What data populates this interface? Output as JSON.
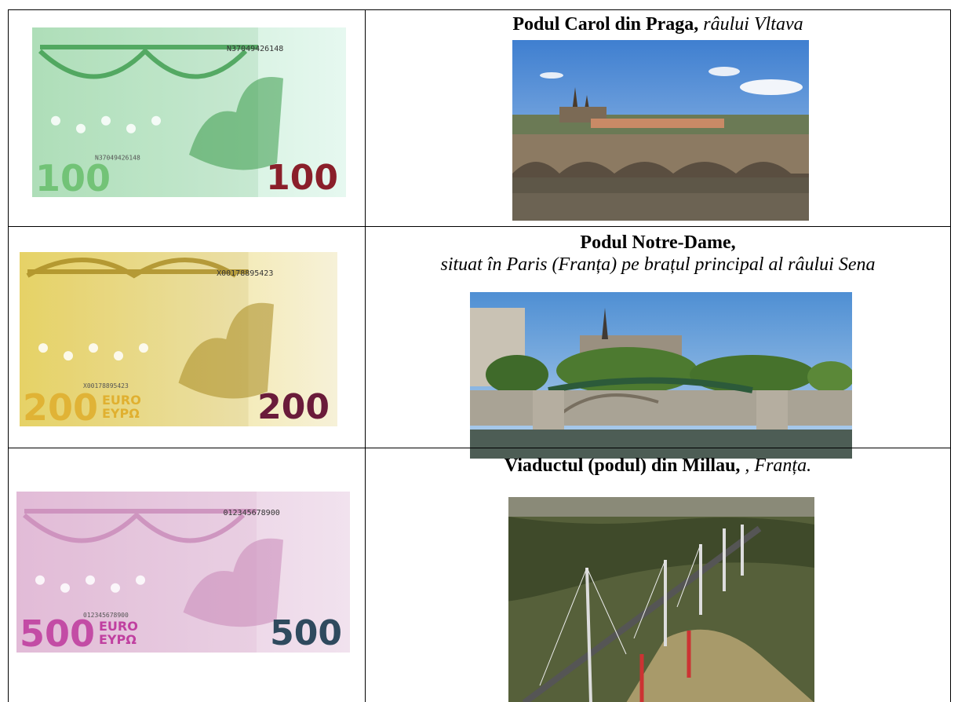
{
  "table": {
    "rows": [
      {
        "banknote": {
          "denomination": "100",
          "serial": "N37049426148"
        },
        "caption": {
          "bold": "Podul Carol din Praga,",
          "italic": "râului Vltava"
        }
      },
      {
        "banknote": {
          "denomination": "200",
          "serial": "X00178895423",
          "currency": [
            "EURO",
            "ΕΥΡΩ"
          ]
        },
        "caption": {
          "bold": "Podul Notre-Dame,",
          "italic": "situat în Paris (Franța) pe brațul principal al râului Sena"
        }
      },
      {
        "banknote": {
          "denomination": "500",
          "serial": "012345678900",
          "currency": [
            "EURO",
            "ΕΥΡΩ"
          ]
        },
        "caption": {
          "bold": "Viaductul (podul) din Millau,",
          "italic": ", Franța."
        }
      }
    ]
  }
}
